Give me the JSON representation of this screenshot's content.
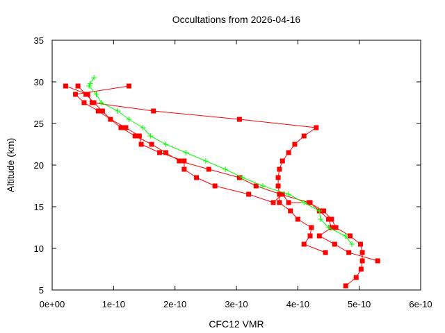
{
  "chart_data": {
    "type": "line",
    "title": "Occultations from 2026-04-16",
    "xlabel": "CFC12 VMR",
    "ylabel": "Altitude (km)",
    "xlim": [
      0,
      6e-10
    ],
    "ylim": [
      5,
      35
    ],
    "x_ticks": [
      0,
      1e-10,
      2e-10,
      3e-10,
      4e-10,
      5e-10,
      6e-10
    ],
    "x_tick_labels": [
      "0e+00",
      "1e-10",
      "2e-10",
      "3e-10",
      "4e-10",
      "5e-10",
      "6e-10"
    ],
    "y_ticks": [
      5,
      10,
      15,
      20,
      25,
      30,
      35
    ],
    "y_tick_labels": [
      "5",
      "10",
      "15",
      "20",
      "25",
      "30",
      "35"
    ],
    "grid": false,
    "legend": "none",
    "series": [
      {
        "color": "#ff0000",
        "marker": "square",
        "points": [
          [
            4.78e-10,
            5.5
          ],
          [
            4.95e-10,
            6.5
          ],
          [
            5.03e-10,
            7.5
          ],
          [
            5.05e-10,
            8.5
          ],
          [
            5.05e-10,
            9.5
          ],
          [
            5.02e-10,
            10.5
          ],
          [
            4.85e-10,
            11.5
          ],
          [
            4.62e-10,
            12.5
          ],
          [
            4.55e-10,
            13.5
          ],
          [
            4.42e-10,
            14.5
          ],
          [
            4.18e-10,
            15.5
          ],
          [
            3.72e-10,
            16.5
          ],
          [
            3.32e-10,
            17.5
          ],
          [
            3.05e-10,
            18.5
          ],
          [
            2.55e-10,
            19.5
          ],
          [
            2.07e-10,
            20.5
          ],
          [
            1.85e-10,
            21.5
          ],
          [
            1.62e-10,
            22.5
          ],
          [
            1.35e-10,
            23.5
          ],
          [
            1.12e-10,
            24.5
          ],
          [
            9.5e-11,
            25.5
          ],
          [
            8.2e-11,
            26.5
          ],
          [
            6.8e-11,
            27.5
          ],
          [
            5.5e-11,
            28.5
          ],
          [
            4.2e-11,
            29.5
          ]
        ]
      },
      {
        "color": "#ff0000",
        "marker": "square",
        "points": [
          [
            4.45e-10,
            9.5
          ],
          [
            4.1e-10,
            10.5
          ],
          [
            4.2e-10,
            11.5
          ],
          [
            4.22e-10,
            12.5
          ],
          [
            4e-10,
            13.5
          ],
          [
            3.88e-10,
            14.5
          ],
          [
            3.7e-10,
            15.5
          ],
          [
            3.7e-10,
            16.5
          ],
          [
            3.68e-10,
            17.5
          ],
          [
            3.68e-10,
            18.5
          ],
          [
            3.7e-10,
            19.5
          ],
          [
            3.75e-10,
            20.5
          ],
          [
            3.85e-10,
            21.5
          ],
          [
            3.95e-10,
            22.5
          ],
          [
            4.1e-10,
            23.5
          ],
          [
            4.3e-10,
            24.5
          ],
          [
            3.05e-10,
            25.5
          ],
          [
            1.65e-10,
            26.5
          ],
          [
            6.5e-11,
            27.5
          ],
          [
            5.8e-11,
            28.5
          ],
          [
            2.2e-11,
            29.5
          ]
        ]
      },
      {
        "color": "#ff0000",
        "marker": "square",
        "points": [
          [
            5.3e-10,
            8.5
          ],
          [
            4.83e-10,
            9.5
          ],
          [
            4.6e-10,
            10.5
          ],
          [
            4.35e-10,
            11.5
          ],
          [
            4.55e-10,
            12.5
          ],
          [
            4.5e-10,
            13.5
          ],
          [
            4.35e-10,
            14.5
          ],
          [
            4.2e-10,
            15.5
          ],
          [
            3.85e-10,
            15.5
          ],
          [
            3.75e-10,
            16.5
          ],
          [
            3.6e-10,
            15.5
          ],
          [
            3.2e-10,
            16.5
          ],
          [
            2.65e-10,
            17.5
          ],
          [
            2.35e-10,
            18.5
          ],
          [
            2.15e-10,
            19.5
          ],
          [
            2.15e-10,
            20.5
          ],
          [
            1.75e-10,
            21.5
          ],
          [
            1.45e-10,
            22.5
          ],
          [
            1.42e-10,
            23.5
          ],
          [
            1.2e-10,
            24.5
          ],
          [
            9.5e-11,
            25.5
          ],
          [
            7.5e-11,
            26.5
          ],
          [
            5.2e-11,
            27.5
          ],
          [
            3.8e-11,
            28.5
          ],
          [
            1.25e-10,
            29.5
          ]
        ]
      },
      {
        "color": "#00ff00",
        "marker": "plus",
        "points": [
          [
            4.88e-10,
            10.5
          ],
          [
            4.77e-10,
            11.5
          ],
          [
            4.5e-10,
            12.5
          ],
          [
            4.37e-10,
            13.5
          ],
          [
            4.35e-10,
            14.5
          ],
          [
            4.1e-10,
            15.5
          ],
          [
            3.85e-10,
            16.5
          ],
          [
            3.43e-10,
            17.5
          ],
          [
            3.1e-10,
            18.5
          ],
          [
            2.82e-10,
            19.5
          ],
          [
            2.5e-10,
            20.5
          ],
          [
            2.18e-10,
            21.5
          ],
          [
            1.85e-10,
            22.5
          ],
          [
            1.6e-10,
            23.5
          ],
          [
            1.48e-10,
            24.5
          ],
          [
            1.25e-10,
            25.5
          ],
          [
            1.07e-10,
            26.5
          ],
          [
            8e-11,
            27.5
          ],
          [
            7.2e-11,
            28.5
          ],
          [
            6e-11,
            29.5
          ],
          [
            6.2e-11,
            29.8
          ],
          [
            6.8e-11,
            30.5
          ]
        ]
      }
    ]
  }
}
